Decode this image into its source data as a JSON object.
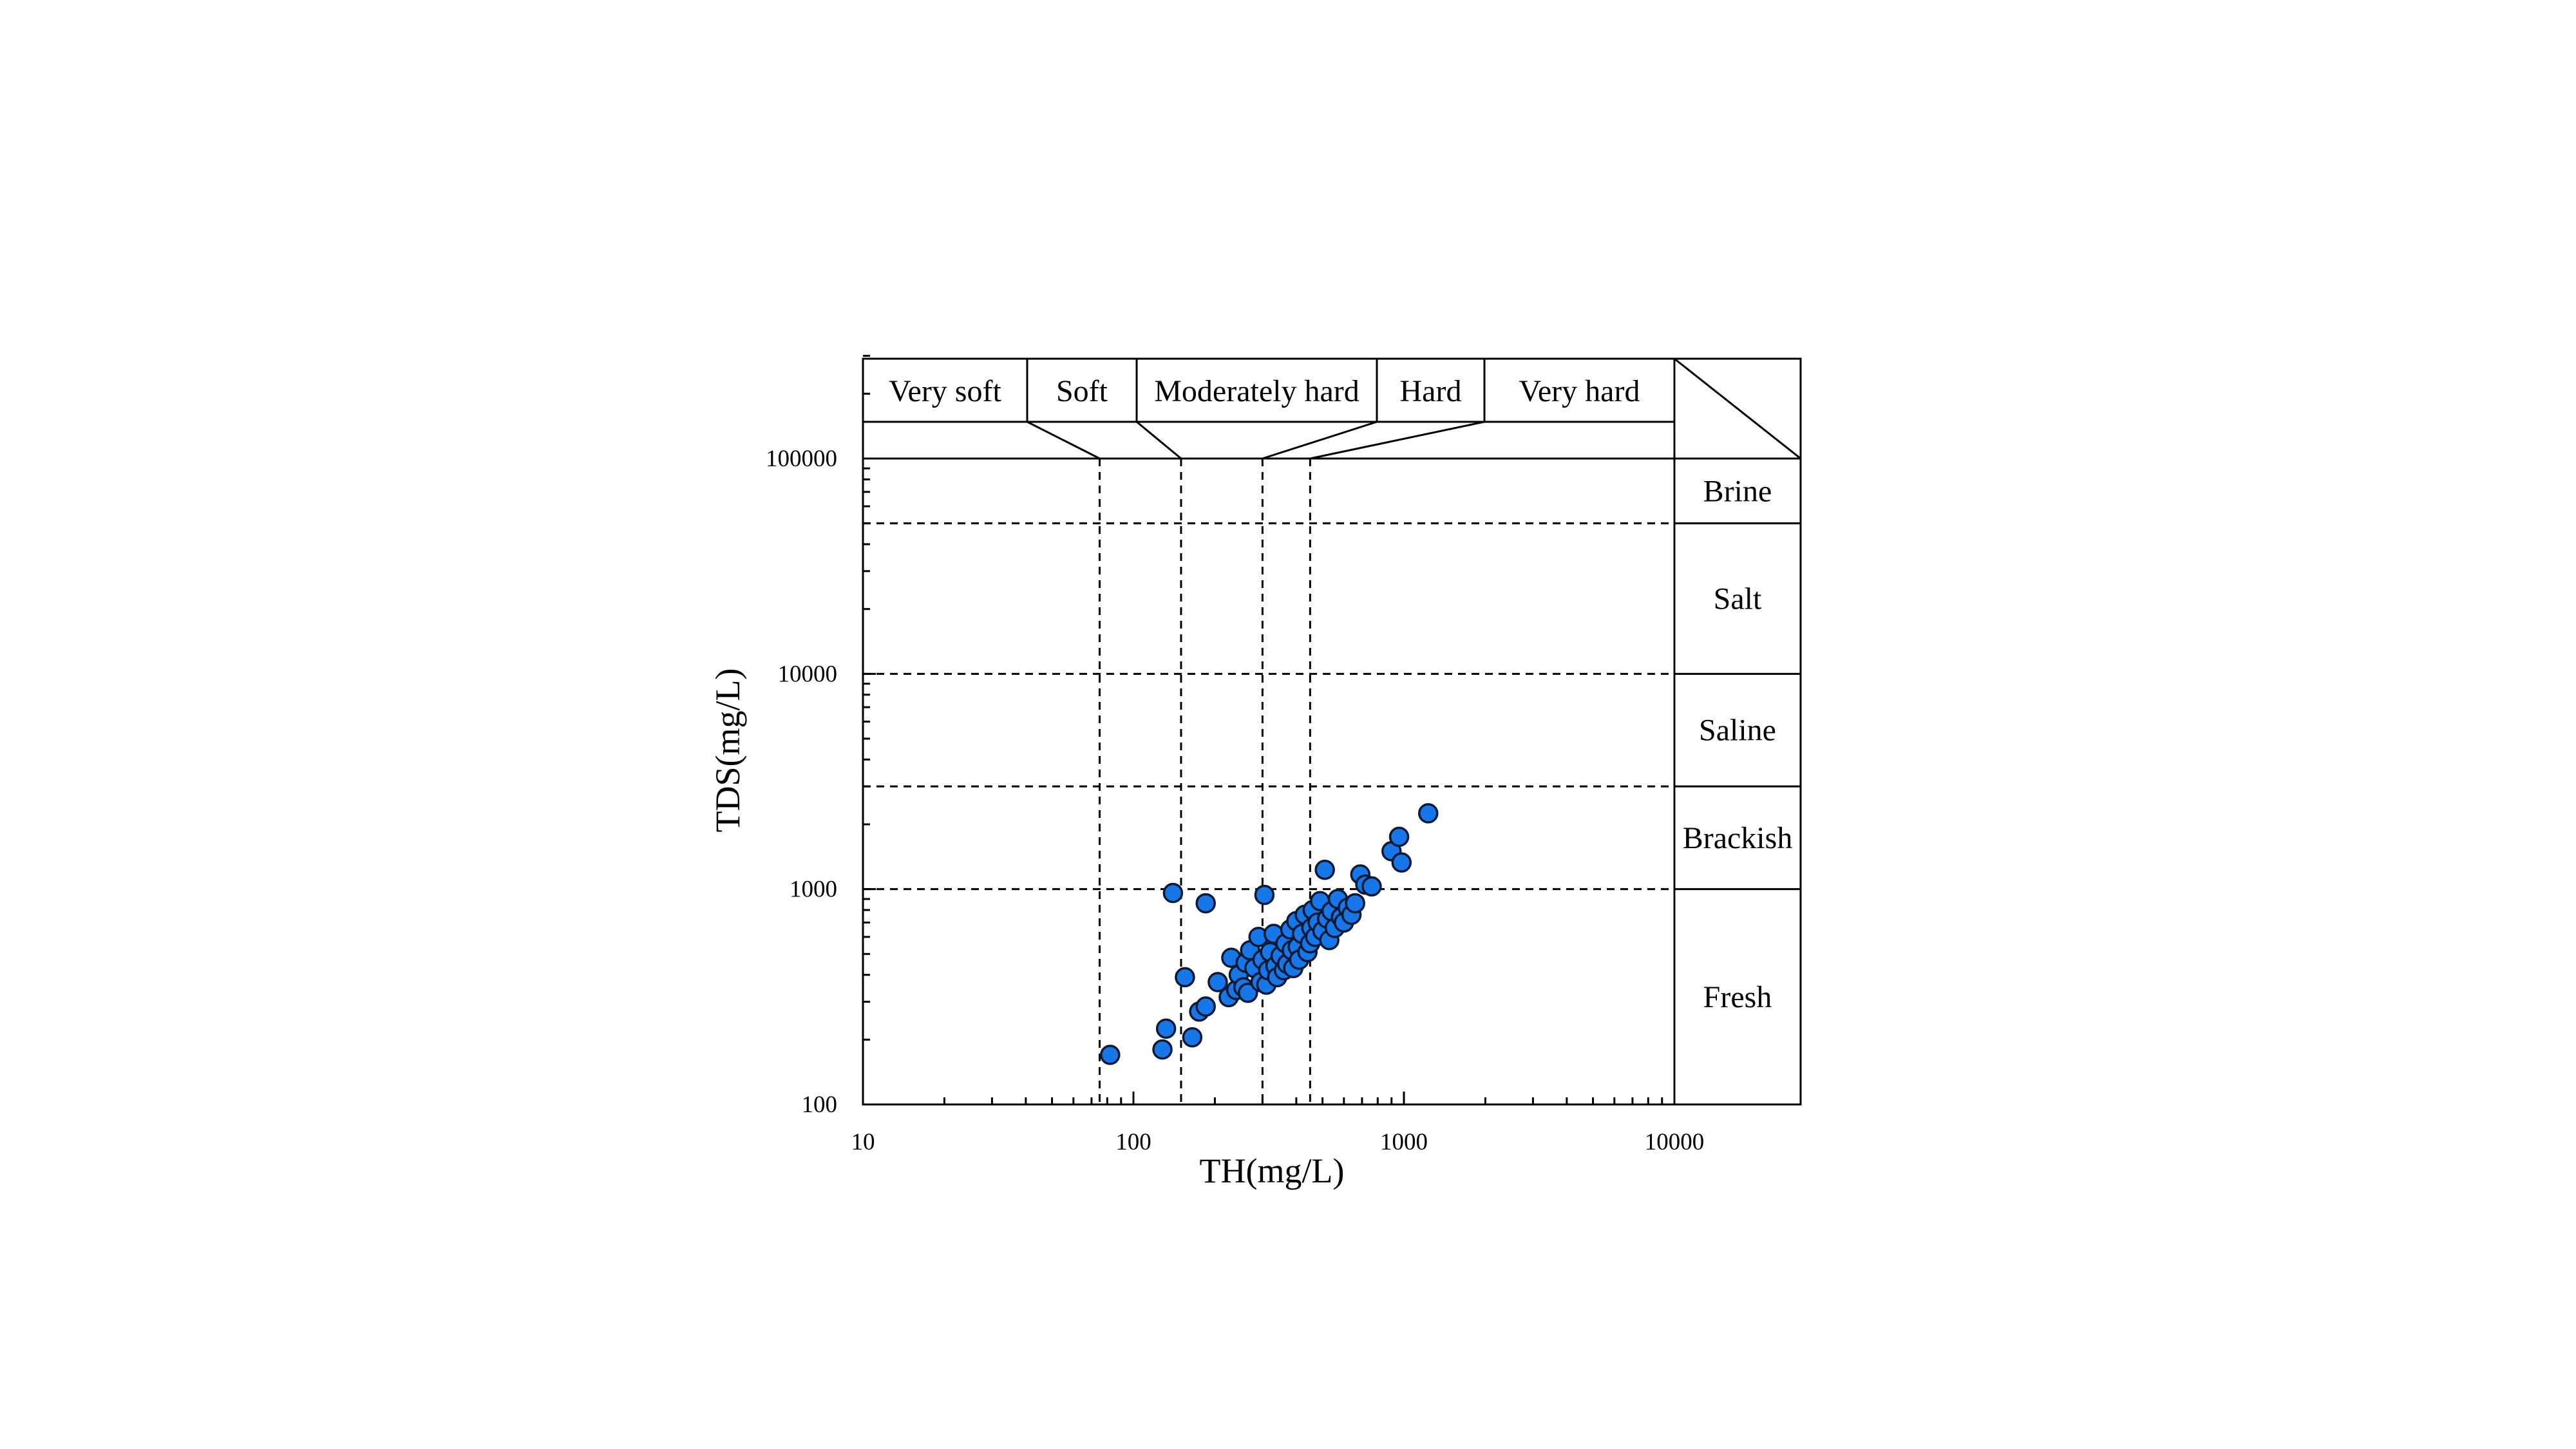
{
  "chart_data": {
    "type": "scatter",
    "xlabel": "TH(mg/L)",
    "ylabel": "TDS(mg/L)",
    "x_scale": "log",
    "y_scale": "log",
    "xlim": [
      10,
      30000
    ],
    "ylim": [
      100,
      300000
    ],
    "x_ticks": [
      "10",
      "100",
      "1000",
      "10000"
    ],
    "y_ticks": [
      "100",
      "1000",
      "10000",
      "100000"
    ],
    "hardness_classes": [
      "Very soft",
      "Soft",
      "Moderately hard",
      "Hard",
      "Very hard"
    ],
    "hardness_boundaries": [
      75,
      150,
      300,
      450
    ],
    "salinity_classes": [
      "Brine",
      "Salt",
      "Saline",
      "Brackish",
      "Fresh"
    ],
    "salinity_boundaries": [
      1000,
      3000,
      10000,
      50000
    ],
    "marker_color": "#1877e8",
    "points": [
      [
        82,
        170
      ],
      [
        128,
        180
      ],
      [
        132,
        225
      ],
      [
        140,
        960
      ],
      [
        155,
        390
      ],
      [
        165,
        205
      ],
      [
        175,
        270
      ],
      [
        185,
        285
      ],
      [
        185,
        860
      ],
      [
        205,
        370
      ],
      [
        225,
        315
      ],
      [
        230,
        480
      ],
      [
        240,
        340
      ],
      [
        245,
        400
      ],
      [
        255,
        350
      ],
      [
        260,
        455
      ],
      [
        265,
        330
      ],
      [
        270,
        520
      ],
      [
        280,
        430
      ],
      [
        290,
        600
      ],
      [
        295,
        370
      ],
      [
        300,
        470
      ],
      [
        305,
        940
      ],
      [
        310,
        360
      ],
      [
        315,
        420
      ],
      [
        320,
        510
      ],
      [
        330,
        620
      ],
      [
        335,
        440
      ],
      [
        340,
        390
      ],
      [
        350,
        490
      ],
      [
        360,
        420
      ],
      [
        365,
        560
      ],
      [
        370,
        450
      ],
      [
        380,
        650
      ],
      [
        385,
        520
      ],
      [
        390,
        430
      ],
      [
        400,
        710
      ],
      [
        405,
        540
      ],
      [
        410,
        470
      ],
      [
        420,
        620
      ],
      [
        430,
        760
      ],
      [
        440,
        510
      ],
      [
        450,
        560
      ],
      [
        455,
        660
      ],
      [
        460,
        800
      ],
      [
        470,
        600
      ],
      [
        480,
        700
      ],
      [
        490,
        880
      ],
      [
        500,
        640
      ],
      [
        510,
        1230
      ],
      [
        520,
        730
      ],
      [
        530,
        580
      ],
      [
        540,
        790
      ],
      [
        555,
        660
      ],
      [
        570,
        900
      ],
      [
        585,
        740
      ],
      [
        600,
        700
      ],
      [
        620,
        820
      ],
      [
        640,
        760
      ],
      [
        660,
        860
      ],
      [
        690,
        1170
      ],
      [
        720,
        1050
      ],
      [
        760,
        1030
      ],
      [
        900,
        1500
      ],
      [
        960,
        1750
      ],
      [
        980,
        1330
      ],
      [
        1230,
        2250
      ]
    ]
  }
}
